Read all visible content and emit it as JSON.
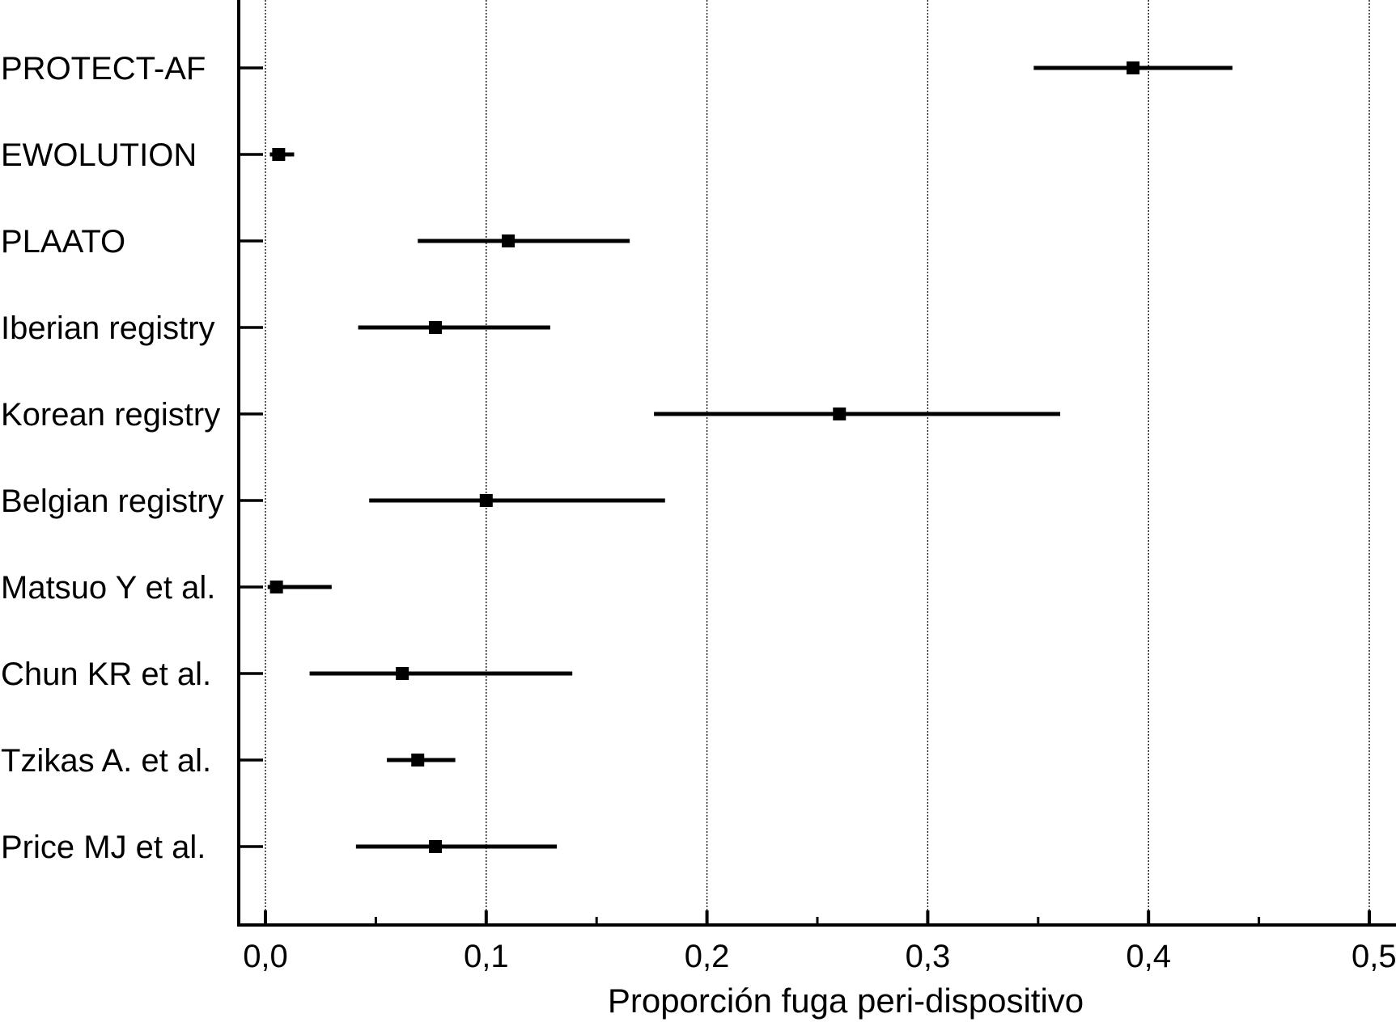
{
  "chart_data": {
    "type": "forest",
    "title": "",
    "xlabel": "Proporción fuga peri-dispositivo",
    "ylabel": "",
    "xlim": [
      0.0,
      0.5
    ],
    "x_ticks": [
      "0,0",
      "0,1",
      "0,2",
      "0,3",
      "0,4",
      "0,5"
    ],
    "grid": "vertical dotted",
    "studies": [
      {
        "label": "PROTECT-AF",
        "estimate": 0.393,
        "lower": 0.348,
        "upper": 0.438
      },
      {
        "label": "EWOLUTION",
        "estimate": 0.006,
        "lower": 0.002,
        "upper": 0.013
      },
      {
        "label": "PLAATO",
        "estimate": 0.11,
        "lower": 0.069,
        "upper": 0.165
      },
      {
        "label": "Iberian registry",
        "estimate": 0.077,
        "lower": 0.042,
        "upper": 0.129
      },
      {
        "label": "Korean registry",
        "estimate": 0.26,
        "lower": 0.176,
        "upper": 0.36
      },
      {
        "label": "Belgian registry",
        "estimate": 0.1,
        "lower": 0.047,
        "upper": 0.181
      },
      {
        "label": "Matsuo Y et al.",
        "estimate": 0.005,
        "lower": 0.001,
        "upper": 0.03
      },
      {
        "label": "Chun KR et al.",
        "estimate": 0.062,
        "lower": 0.02,
        "upper": 0.139
      },
      {
        "label": "Tzikas A. et al.",
        "estimate": 0.069,
        "lower": 0.055,
        "upper": 0.086
      },
      {
        "label": "Price MJ et al.",
        "estimate": 0.077,
        "lower": 0.041,
        "upper": 0.132
      }
    ]
  }
}
